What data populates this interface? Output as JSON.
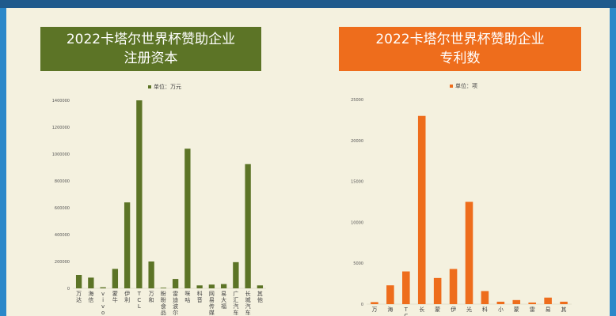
{
  "chart_data": [
    {
      "type": "bar",
      "title_line1": "2022卡塔尔世界杯赞助企业",
      "title_line2": "注册资本",
      "legend": "单位：万元",
      "color": "#5c7426",
      "ylim": [
        0,
        1400000
      ],
      "yticks": [
        "0",
        "200000",
        "400000",
        "600000",
        "800000",
        "1000000",
        "1200000",
        "1400000"
      ],
      "categories": [
        "万达",
        "海信",
        "vivo",
        "蒙牛",
        "伊利",
        "TCL",
        "万和",
        "盼盼食品",
        "雷迪波尔",
        "咪咕",
        "科音",
        "网易传媒",
        "易大福",
        "广汇汽车",
        "长城汽车",
        "其他"
      ],
      "values": [
        100000,
        80000,
        8000,
        145000,
        640000,
        1400000,
        200000,
        5000,
        70000,
        1040000,
        22000,
        28000,
        32000,
        195000,
        925000,
        22000
      ]
    },
    {
      "type": "bar",
      "title_line1": "2022卡塔尔世界杯赞助企业",
      "title_line2": "专利数",
      "legend": "单位：项",
      "color": "#ee6d1c",
      "ylim": [
        0,
        25000
      ],
      "yticks": [
        "0",
        "5000",
        "10000",
        "15000",
        "20000",
        "25000"
      ],
      "categories": [
        "万",
        "海",
        "TC",
        "长",
        "蒙",
        "伊",
        "光",
        "科",
        "小",
        "蒙",
        "雷",
        "易",
        "其"
      ],
      "values": [
        250,
        2300,
        4000,
        23000,
        3200,
        4300,
        12500,
        1600,
        300,
        500,
        200,
        800,
        300
      ]
    }
  ]
}
